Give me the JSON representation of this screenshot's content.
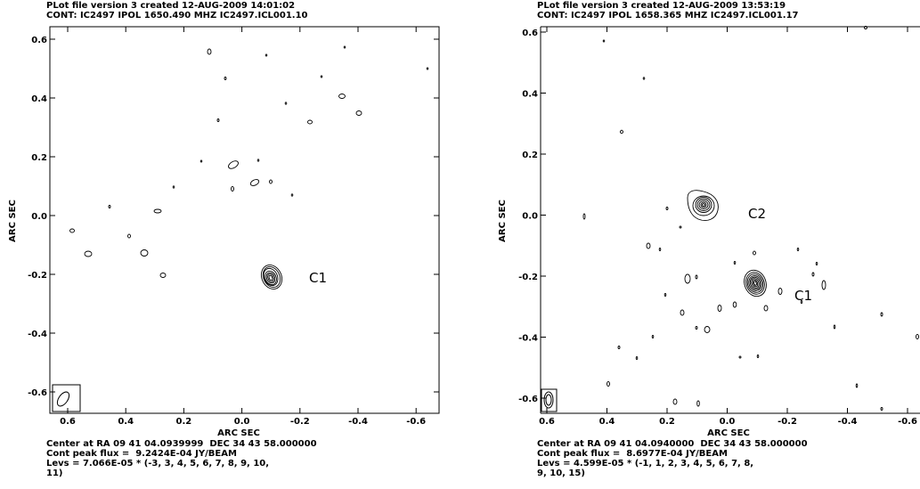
{
  "panels": [
    {
      "header_line1": "PLot file version 3  created 12-AUG-2009 14:01:02",
      "header_line2": "CONT: IC2497  IPOL  1650.490 MHZ  IC2497.ICL001.10",
      "xlabel": "ARC SEC",
      "ylabel": "ARC SEC",
      "xticks": [
        "0.6",
        "0.4",
        "0.2",
        "0.0",
        "-0.2",
        "-0.4",
        "-0.6"
      ],
      "yticks": [
        "0.6",
        "0.4",
        "0.2",
        "0.0",
        "-0.2",
        "-0.4",
        "-0.6"
      ],
      "sources": [
        {
          "label": "C1"
        }
      ],
      "footer": [
        "Center at RA 09 41 04.0939999  DEC 34 43 58.000000",
        "Cont peak flux =  9.2424E-04 JY/BEAM",
        "Levs = 7.066E-05 * (-3, 3, 4, 5, 6, 7, 8, 9, 10,",
        "11)"
      ]
    },
    {
      "header_line1": "PLot file version 3  created 12-AUG-2009 13:53:19",
      "header_line2": "CONT: IC2497  IPOL  1658.365 MHZ  IC2497.ICL001.17",
      "xlabel": "ARC SEC",
      "ylabel": "ARC SEC",
      "xticks": [
        "0.6",
        "0.4",
        "0.2",
        "0.0",
        "-0.2",
        "-0.4",
        "-0.6"
      ],
      "yticks": [
        "0.6",
        "0.4",
        "0.2",
        "0.0",
        "-0.2",
        "-0.4",
        "-0.6"
      ],
      "sources": [
        {
          "label": "C2"
        },
        {
          "label": "C1"
        }
      ],
      "footer": [
        "Center at RA 09 41 04.0940000  DEC 34 43 58.000000",
        "Cont peak flux =  8.6977E-04 JY/BEAM",
        "Levs = 4.599E-05 * (-1, 1, 2, 3, 4, 5, 6, 7, 8,",
        "9, 10, 15)"
      ]
    }
  ]
}
